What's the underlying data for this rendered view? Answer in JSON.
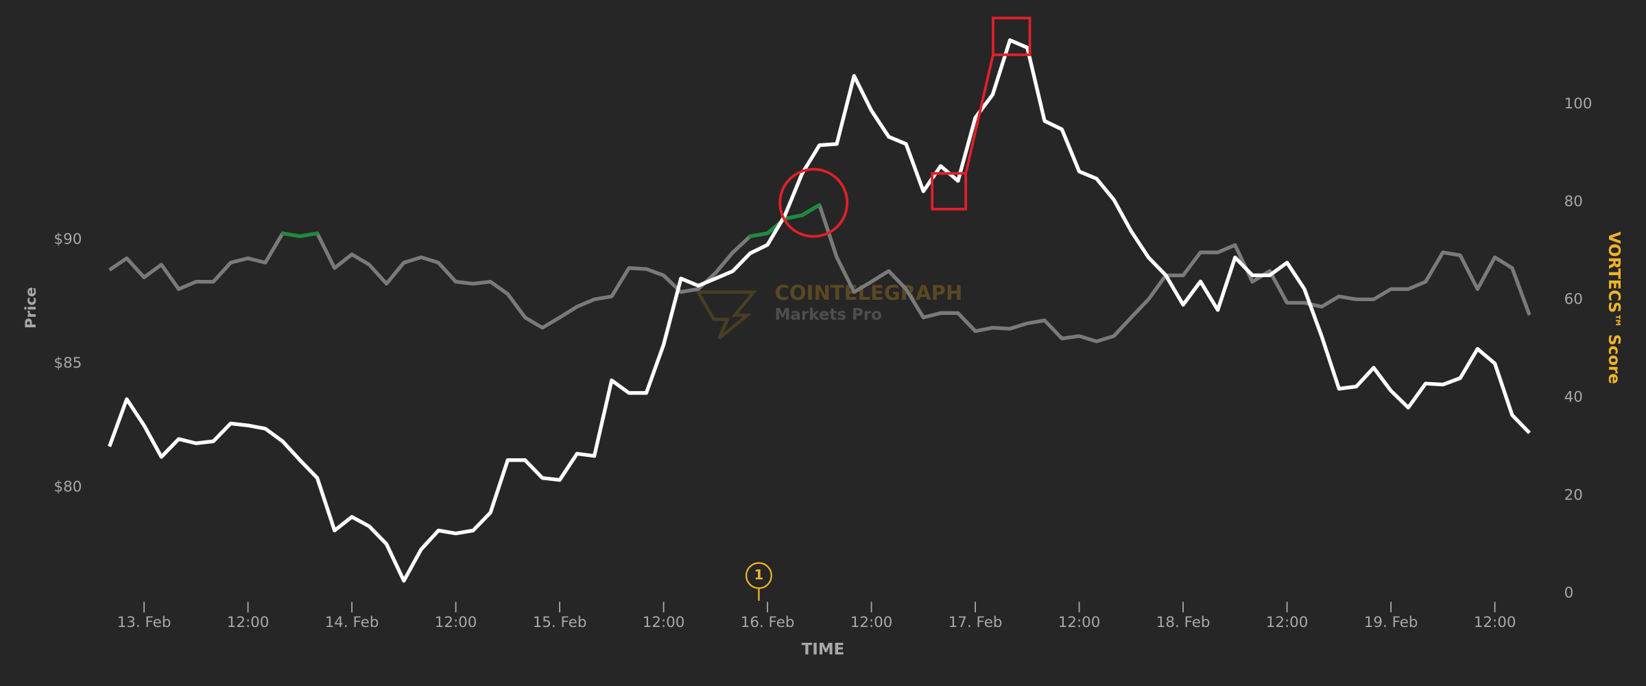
{
  "chart_data": {
    "type": "line",
    "xlabel": "TIME",
    "ylabel": "Price",
    "y2label": "VORTECS™ Score",
    "watermark": {
      "title": "COINTELEGRAPH",
      "subtitle": "Markets Pro"
    },
    "xlim": [
      -5,
      162
    ],
    "xticks": [
      {
        "value": 0,
        "label": "13. Feb"
      },
      {
        "value": 12,
        "label": "12:00"
      },
      {
        "value": 24,
        "label": "14. Feb"
      },
      {
        "value": 36,
        "label": "12:00"
      },
      {
        "value": 48,
        "label": "15. Feb"
      },
      {
        "value": 60,
        "label": "12:00"
      },
      {
        "value": 72,
        "label": "16. Feb"
      },
      {
        "value": 84,
        "label": "12:00"
      },
      {
        "value": 96,
        "label": "17. Feb"
      },
      {
        "value": 108,
        "label": "12:00"
      },
      {
        "value": 120,
        "label": "18. Feb"
      },
      {
        "value": 132,
        "label": "12:00"
      },
      {
        "value": 144,
        "label": "19. Feb"
      },
      {
        "value": 156,
        "label": "12:00"
      }
    ],
    "ylim": [
      75.72,
      99.24
    ],
    "yticks": [
      {
        "value": 80,
        "label": "$80"
      },
      {
        "value": 85,
        "label": "$85"
      },
      {
        "value": 90,
        "label": "$90"
      }
    ],
    "y2lim": [
      0,
      119.1
    ],
    "y2ticks": [
      0,
      20,
      40,
      60,
      80,
      100
    ],
    "x": [
      -4,
      -2,
      0,
      2,
      4,
      6,
      8,
      10,
      12,
      14,
      16,
      18,
      20,
      22,
      24,
      26,
      28,
      30,
      32,
      34,
      36,
      38,
      40,
      42,
      44,
      46,
      48,
      50,
      52,
      54,
      56,
      58,
      60,
      62,
      64,
      66,
      68,
      70,
      72,
      74,
      76,
      78,
      80,
      82,
      84,
      86,
      88,
      90,
      92,
      94,
      96,
      98,
      100,
      102,
      104,
      106,
      108,
      110,
      112,
      114,
      116,
      118,
      120,
      122,
      124,
      126,
      128,
      130,
      132,
      134,
      136,
      138,
      140,
      142,
      144,
      146,
      148,
      150,
      152,
      154,
      156,
      158,
      160
    ],
    "series": [
      {
        "color": "#ffffff",
        "values": [
          81.65,
          83.56,
          82.5,
          81.23,
          81.95,
          81.78,
          81.86,
          82.58,
          82.5,
          82.37,
          81.86,
          81.1,
          80.38,
          78.26,
          78.81,
          78.43,
          77.71,
          76.23,
          77.5,
          78.26,
          78.14,
          78.26,
          78.98,
          81.1,
          81.1,
          80.38,
          80.3,
          81.36,
          81.27,
          84.32,
          83.81,
          83.81,
          85.76,
          88.43,
          88.14,
          88.43,
          88.73,
          89.45,
          89.79,
          90.97,
          92.67,
          93.81,
          93.86,
          96.61,
          95.21,
          94.15,
          93.86,
          91.95,
          92.97,
          92.37,
          94.92,
          95.85,
          98.05,
          97.75,
          94.79,
          94.45,
          92.75,
          92.46,
          91.61,
          90.34,
          89.28,
          88.56,
          87.37,
          88.31,
          87.16,
          89.28,
          88.56,
          88.56,
          89.07,
          88.01,
          86.1,
          83.98,
          84.07,
          84.83,
          83.9,
          83.22,
          84.19,
          84.15,
          84.41,
          85.59,
          85.0,
          82.92,
          82.2
        ]
      },
      {
        "color": "#7a7a7a",
        "axis": "y2",
        "highlight": {
          "color": "#1e8a3e",
          "above": 72
        },
        "values": [
          66.1,
          68.5,
          64.6,
          67.2,
          62.2,
          63.7,
          63.7,
          67.6,
          68.5,
          67.6,
          73.6,
          73.0,
          73.6,
          66.5,
          69.3,
          67.2,
          63.3,
          67.6,
          68.7,
          67.6,
          63.7,
          63.3,
          63.7,
          61.2,
          56.4,
          54.3,
          56.4,
          58.6,
          60.1,
          60.7,
          66.5,
          66.3,
          65.0,
          61.6,
          62.2,
          65.5,
          69.7,
          73.0,
          73.6,
          76.6,
          77.3,
          79.4,
          68.7,
          61.6,
          63.7,
          65.9,
          62.2,
          56.4,
          57.3,
          57.3,
          53.6,
          54.3,
          54.1,
          55.2,
          55.8,
          52.1,
          52.6,
          51.5,
          52.6,
          56.4,
          60.1,
          65.0,
          65.0,
          69.7,
          69.7,
          71.2,
          63.7,
          65.9,
          59.4,
          59.4,
          58.6,
          60.7,
          60.1,
          60.1,
          62.2,
          62.2,
          63.7,
          69.7,
          69.1,
          62.2,
          68.7,
          66.5,
          56.9
        ]
      }
    ],
    "markers": [
      {
        "x": 71,
        "label": "1",
        "color": "#f0b429"
      }
    ]
  }
}
